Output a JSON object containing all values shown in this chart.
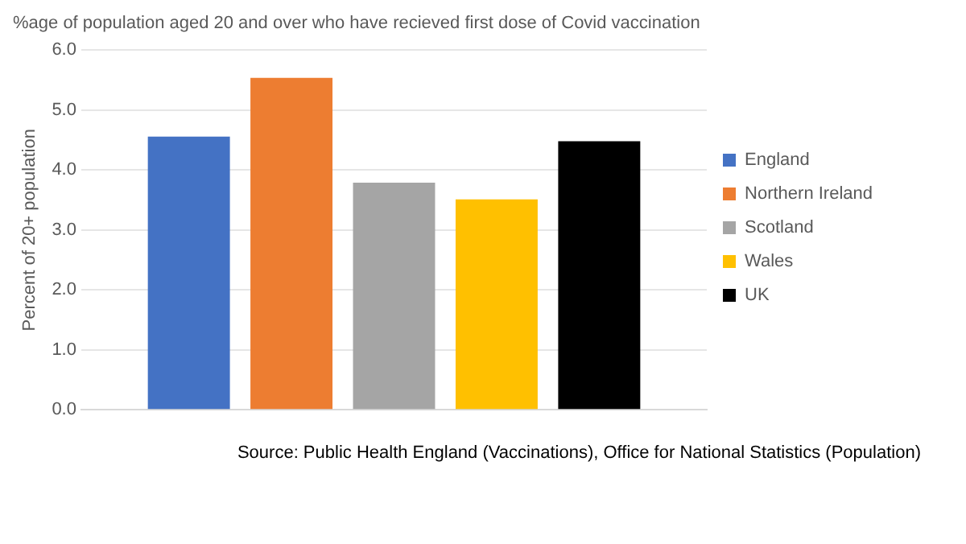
{
  "chart_data": {
    "type": "bar",
    "title": "%age of population aged 20 and over who have recieved first dose of Covid vaccination",
    "ylabel": "Percent of 20+ population",
    "categories": [
      null
    ],
    "series": [
      {
        "name": "England",
        "color": "#4472c4",
        "values": [
          4.56
        ]
      },
      {
        "name": "Northern Ireland",
        "color": "#ed7d31",
        "values": [
          5.54
        ]
      },
      {
        "name": "Scotland",
        "color": "#a5a5a5",
        "values": [
          3.79
        ]
      },
      {
        "name": "Wales",
        "color": "#ffc000",
        "values": [
          3.51
        ]
      },
      {
        "name": "UK",
        "color": "#000000",
        "values": [
          4.48
        ]
      }
    ],
    "ylim": [
      0,
      6
    ],
    "yticks": [
      {
        "value": 0,
        "label": "0.0"
      },
      {
        "value": 1,
        "label": "1.0"
      },
      {
        "value": 2,
        "label": "2.0"
      },
      {
        "value": 3,
        "label": "3.0"
      },
      {
        "value": 4,
        "label": "4.0"
      },
      {
        "value": 5,
        "label": "5.0"
      },
      {
        "value": 6,
        "label": "6.0"
      }
    ],
    "grid": "y",
    "legend": "right",
    "annotations": [
      "Source: Public Health England (Vaccinations), Office for National Statistics (Population)"
    ]
  }
}
